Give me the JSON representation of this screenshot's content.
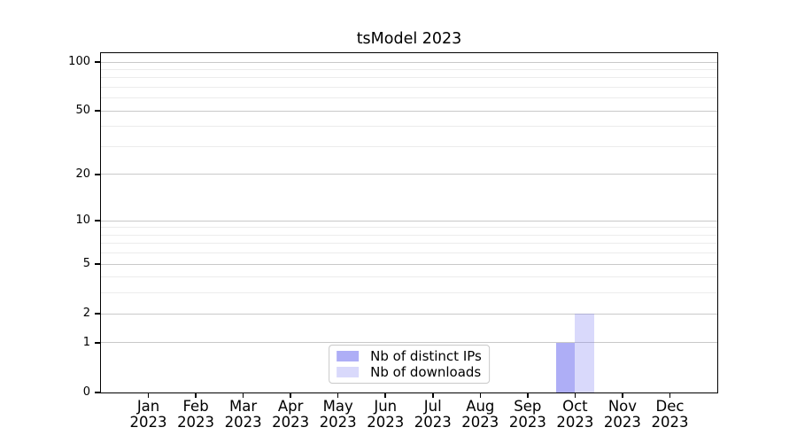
{
  "chart_data": {
    "type": "bar",
    "title": "tsModel 2023",
    "categories": [
      "Jan\n2023",
      "Feb\n2023",
      "Mar\n2023",
      "Apr\n2023",
      "May\n2023",
      "Jun\n2023",
      "Jul\n2023",
      "Aug\n2023",
      "Sep\n2023",
      "Oct\n2023",
      "Nov\n2023",
      "Dec\n2023"
    ],
    "series": [
      {
        "name": "Nb of distinct IPs",
        "color": "rgba(120,120,240,0.6)",
        "values": [
          0,
          0,
          0,
          0,
          0,
          0,
          0,
          0,
          0,
          1,
          0,
          0
        ]
      },
      {
        "name": "Nb of downloads",
        "color": "rgba(120,120,240,0.28)",
        "values": [
          0,
          0,
          0,
          0,
          0,
          0,
          0,
          0,
          0,
          2,
          0,
          0
        ]
      }
    ],
    "xlabel": "",
    "ylabel": "",
    "yscale": "log1p",
    "ylim": [
      0,
      100
    ],
    "yticks": [
      0,
      1,
      2,
      5,
      10,
      20,
      50,
      100
    ],
    "yticks_minor": [
      3,
      4,
      6,
      7,
      8,
      9,
      30,
      40,
      60,
      70,
      80,
      90
    ],
    "grid": true,
    "legend_position": "lower center",
    "colors": {
      "grid_major": "#c9c9c9",
      "grid_minor": "#ececec",
      "spine": "#000000",
      "background": "#ffffff",
      "text": "#000000"
    }
  }
}
